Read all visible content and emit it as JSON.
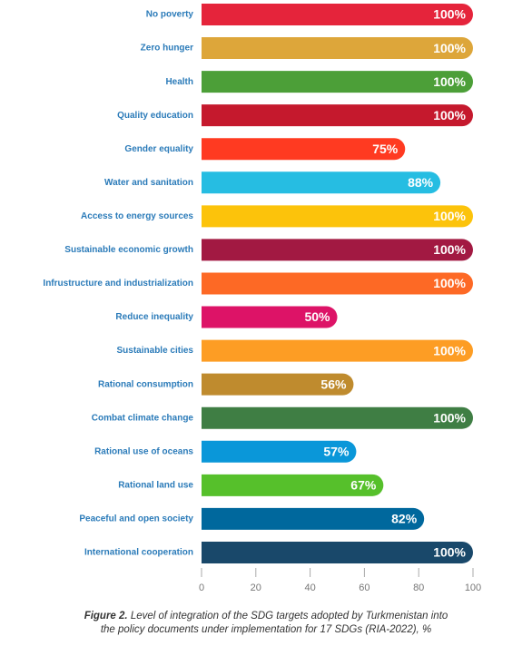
{
  "chart_data": {
    "type": "bar",
    "orientation": "horizontal",
    "categories": [
      "No poverty",
      "Zero hunger",
      "Health",
      "Quality education",
      "Gender equality",
      "Water and sanitation",
      "Access to energy sources",
      "Sustainable economic growth",
      "Infrustructure and industrialization",
      "Reduce inequality",
      "Sustainable cities",
      "Rational consumption",
      "Combat climate change",
      "Rational use of oceans",
      "Rational land use",
      "Peaceful and open society",
      "International cooperation"
    ],
    "values": [
      100,
      100,
      100,
      100,
      75,
      88,
      100,
      100,
      100,
      50,
      100,
      56,
      100,
      57,
      67,
      82,
      100
    ],
    "value_labels": [
      "100%",
      "100%",
      "100%",
      "100%",
      "75%",
      "88%",
      "100%",
      "100%",
      "100%",
      "50%",
      "100%",
      "56%",
      "100%",
      "57%",
      "67%",
      "82%",
      "100%"
    ],
    "colors": [
      "#e5243b",
      "#dda63a",
      "#4c9f38",
      "#c5192d",
      "#ff3a21",
      "#26bde2",
      "#fcc30b",
      "#a21942",
      "#fd6925",
      "#dd1367",
      "#fd9d24",
      "#bf8b2e",
      "#3f7e44",
      "#0a97d9",
      "#56c02b",
      "#00689d",
      "#19486a"
    ],
    "xlim": [
      0,
      100
    ],
    "xticks": [
      0,
      20,
      40,
      60,
      80,
      100
    ],
    "caption_label": "Figure 2.",
    "caption": "Level of integration of the SDG targets adopted by Turkmenistan into the policy documents under implementation for 17 SDGs (RIA-2022), %"
  }
}
